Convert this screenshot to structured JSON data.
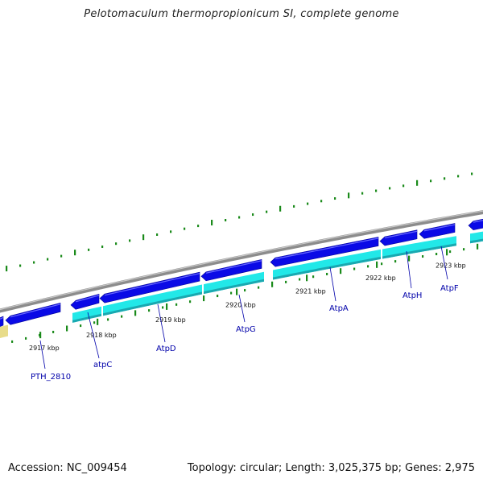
{
  "title": "Pelotomaculum thermopropionicum SI, complete genome",
  "footer": {
    "accession": "Accession: NC_009454",
    "stats": "Topology: circular; Length: 3,025,375 bp; Genes: 2,975"
  },
  "colors": {
    "backbone": "#8c8c8c",
    "forward_gene": "#0a0ae6",
    "cds": "#22e8e8",
    "cds_shadow": "#1aa8b0",
    "other_feature": "#e8dc8a",
    "tick": "#1a8a1a",
    "label_line": "#0000aa"
  },
  "scale_ticks": [
    {
      "label": "2917 kbp"
    },
    {
      "label": "2918 kbp"
    },
    {
      "label": "2919 kbp"
    },
    {
      "label": "2920 kbp"
    },
    {
      "label": "2921 kbp"
    },
    {
      "label": "2922 kbp"
    },
    {
      "label": "2923 kbp"
    }
  ],
  "gene_labels": [
    {
      "name": "PTH_2810"
    },
    {
      "name": "atpC"
    },
    {
      "name": "AtpD"
    },
    {
      "name": "AtpG"
    },
    {
      "name": "AtpA"
    },
    {
      "name": "AtpH"
    },
    {
      "name": "AtpF"
    }
  ]
}
